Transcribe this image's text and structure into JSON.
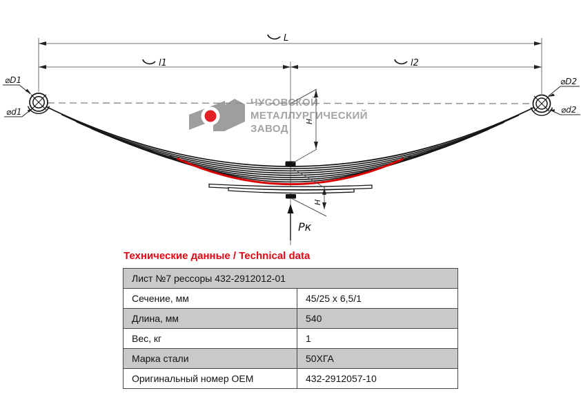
{
  "logo": {
    "line1": "ЧУСОВСКОЙ",
    "line2": "МЕТАЛЛУРГИЧЕСКИЙ",
    "line3": "ЗАВОД",
    "gray": "#9e9e9c",
    "red": "#e31e24"
  },
  "drawing": {
    "dim_total_length": "L",
    "dim_half_left": "l1",
    "dim_half_right": "l2",
    "eye_outer_left": "⌀D1",
    "eye_inner_left": "⌀d1",
    "eye_outer_right": "⌀D2",
    "eye_inner_right": "⌀d2",
    "camber_height": "H",
    "lower_height": "H",
    "load_arrow": "Pк",
    "highlight_leaf_color": "#d80000"
  },
  "table": {
    "title": "Технические данные / Technical data",
    "title_color": "#e30613",
    "header_row": "Лист №7 рессоры 432-2912012-01",
    "rows": [
      {
        "label": "Сечение, мм",
        "value": "45/25 x 6,5/1"
      },
      {
        "label": "Длина, мм",
        "value": "540"
      },
      {
        "label": "Вес, кг",
        "value": "1"
      },
      {
        "label": "Марка стали",
        "value": "50ХГА"
      },
      {
        "label": "Оригинальный номер OEM",
        "value": "432-2912057-10"
      }
    ],
    "row_gray": "#c9c9c9"
  }
}
